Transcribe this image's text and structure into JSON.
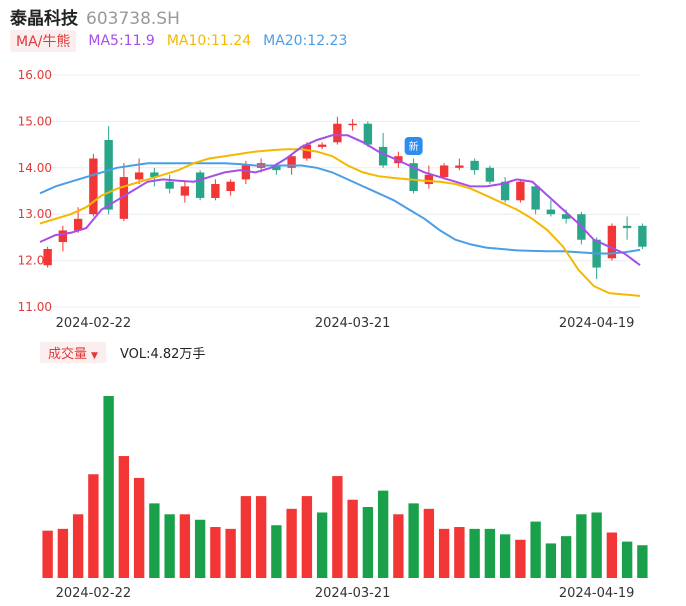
{
  "header": {
    "name": "泰晶科技",
    "code": "603738.SH"
  },
  "ma_legend": {
    "badge": "MA/牛熊",
    "items": [
      {
        "label": "MA5:11.9",
        "color": "#a64ee8"
      },
      {
        "label": "MA10:11.24",
        "color": "#f5b800"
      },
      {
        "label": "MA20:12.23",
        "color": "#4a9ee8"
      }
    ]
  },
  "volume_legend": {
    "badge": "成交量",
    "caret": "▼",
    "text": "VOL:4.82万手"
  },
  "colors": {
    "up": "#f23535",
    "down": "#1aa04b",
    "down_candle": "#2aa58a",
    "ma5": "#a64ee8",
    "ma10": "#f5b800",
    "ma20": "#4a9ee8"
  },
  "marker_icon": "bell-badge-icon",
  "marker_text": "新",
  "chart_data": [
    {
      "type": "candlestick",
      "ylim": [
        11.0,
        16.0
      ],
      "yticks": [
        "16.00",
        "15.00",
        "14.00",
        "13.00",
        "12.00",
        "11.00"
      ],
      "xticks": [
        "2024-02-22",
        "2024-03-21",
        "2024-04-19"
      ],
      "grid": true,
      "candles": [
        {
          "o": 11.9,
          "c": 12.25,
          "h": 12.3,
          "l": 11.85
        },
        {
          "o": 12.4,
          "c": 12.65,
          "h": 12.75,
          "l": 12.2
        },
        {
          "o": 12.65,
          "c": 12.9,
          "h": 13.15,
          "l": 12.6
        },
        {
          "o": 13.0,
          "c": 14.2,
          "h": 14.3,
          "l": 12.95
        },
        {
          "o": 14.6,
          "c": 13.1,
          "h": 14.9,
          "l": 13.0
        },
        {
          "o": 12.9,
          "c": 13.8,
          "h": 14.1,
          "l": 12.85
        },
        {
          "o": 13.75,
          "c": 13.9,
          "h": 14.2,
          "l": 13.65
        },
        {
          "o": 13.9,
          "c": 13.8,
          "h": 14.0,
          "l": 13.6
        },
        {
          "o": 13.7,
          "c": 13.55,
          "h": 13.85,
          "l": 13.45
        },
        {
          "o": 13.4,
          "c": 13.6,
          "h": 13.7,
          "l": 13.25
        },
        {
          "o": 13.9,
          "c": 13.35,
          "h": 13.95,
          "l": 13.3
        },
        {
          "o": 13.35,
          "c": 13.65,
          "h": 13.75,
          "l": 13.3
        },
        {
          "o": 13.5,
          "c": 13.7,
          "h": 13.75,
          "l": 13.4
        },
        {
          "o": 13.75,
          "c": 14.05,
          "h": 14.15,
          "l": 13.65
        },
        {
          "o": 14.0,
          "c": 14.1,
          "h": 14.2,
          "l": 13.9
        },
        {
          "o": 14.05,
          "c": 13.95,
          "h": 14.1,
          "l": 13.85
        },
        {
          "o": 14.0,
          "c": 14.25,
          "h": 14.3,
          "l": 13.85
        },
        {
          "o": 14.2,
          "c": 14.5,
          "h": 14.55,
          "l": 14.15
        },
        {
          "o": 14.45,
          "c": 14.5,
          "h": 14.55,
          "l": 14.4
        },
        {
          "o": 14.55,
          "c": 14.95,
          "h": 15.1,
          "l": 14.5
        },
        {
          "o": 14.95,
          "c": 14.95,
          "h": 15.05,
          "l": 14.8
        },
        {
          "o": 14.95,
          "c": 14.5,
          "h": 15.0,
          "l": 14.45
        },
        {
          "o": 14.45,
          "c": 14.05,
          "h": 14.75,
          "l": 14.0
        },
        {
          "o": 14.1,
          "c": 14.25,
          "h": 14.35,
          "l": 14.0
        },
        {
          "o": 14.1,
          "c": 13.5,
          "h": 14.2,
          "l": 13.45
        },
        {
          "o": 13.65,
          "c": 13.85,
          "h": 14.05,
          "l": 13.55
        },
        {
          "o": 13.8,
          "c": 14.05,
          "h": 14.1,
          "l": 13.75
        },
        {
          "o": 14.0,
          "c": 14.05,
          "h": 14.2,
          "l": 13.95
        },
        {
          "o": 14.15,
          "c": 13.95,
          "h": 14.2,
          "l": 13.85
        },
        {
          "o": 14.0,
          "c": 13.7,
          "h": 14.05,
          "l": 13.65
        },
        {
          "o": 13.7,
          "c": 13.3,
          "h": 13.8,
          "l": 13.25
        },
        {
          "o": 13.3,
          "c": 13.7,
          "h": 13.75,
          "l": 13.25
        },
        {
          "o": 13.6,
          "c": 13.1,
          "h": 13.65,
          "l": 13.0
        },
        {
          "o": 13.1,
          "c": 13.0,
          "h": 13.3,
          "l": 12.95
        },
        {
          "o": 13.0,
          "c": 12.9,
          "h": 13.1,
          "l": 12.8
        },
        {
          "o": 13.0,
          "c": 12.45,
          "h": 13.05,
          "l": 12.35
        },
        {
          "o": 12.45,
          "c": 11.85,
          "h": 12.5,
          "l": 11.6
        },
        {
          "o": 12.05,
          "c": 12.75,
          "h": 12.8,
          "l": 12.0
        },
        {
          "o": 12.75,
          "c": 12.7,
          "h": 12.95,
          "l": 12.45
        },
        {
          "o": 12.75,
          "c": 12.3,
          "h": 12.8,
          "l": 12.25
        }
      ],
      "ma5": [
        12.4,
        12.55,
        12.6,
        12.7,
        13.1,
        13.3,
        13.5,
        13.7,
        13.75,
        13.72,
        13.7,
        13.8,
        13.9,
        13.95,
        13.9,
        14.0,
        14.2,
        14.45,
        14.6,
        14.7,
        14.7,
        14.55,
        14.35,
        14.2,
        14.05,
        13.9,
        13.8,
        13.7,
        13.6,
        13.6,
        13.65,
        13.75,
        13.7,
        13.4,
        13.1,
        12.8,
        12.45,
        12.3,
        12.15,
        11.9
      ],
      "ma10": [
        12.8,
        12.9,
        13.0,
        13.15,
        13.4,
        13.55,
        13.65,
        13.75,
        13.85,
        13.95,
        14.1,
        14.2,
        14.25,
        14.3,
        14.35,
        14.38,
        14.4,
        14.4,
        14.35,
        14.25,
        14.05,
        13.9,
        13.82,
        13.78,
        13.75,
        13.72,
        13.7,
        13.65,
        13.55,
        13.4,
        13.25,
        13.1,
        12.9,
        12.65,
        12.3,
        11.8,
        11.45,
        11.3,
        11.27,
        11.24
      ],
      "ma20": [
        13.45,
        13.6,
        13.7,
        13.8,
        13.9,
        14.0,
        14.05,
        14.1,
        14.1,
        14.1,
        14.1,
        14.1,
        14.1,
        14.08,
        14.05,
        14.05,
        14.05,
        14.05,
        14.0,
        13.9,
        13.75,
        13.6,
        13.45,
        13.3,
        13.1,
        12.9,
        12.65,
        12.45,
        12.35,
        12.28,
        12.25,
        12.22,
        12.21,
        12.2,
        12.2,
        12.18,
        12.16,
        12.15,
        12.18,
        12.23
      ],
      "marker_index": 24
    },
    {
      "type": "bar",
      "title": "成交量",
      "xticks": [
        "2024-02-22",
        "2024-03-21",
        "2024-04-19"
      ],
      "ylim": [
        0,
        100
      ],
      "values": [
        26,
        27,
        35,
        57,
        100,
        67,
        55,
        41,
        35,
        35,
        32,
        28,
        27,
        45,
        45,
        29,
        38,
        45,
        36,
        56,
        43,
        39,
        48,
        35,
        41,
        38,
        27,
        28,
        27,
        27,
        24,
        21,
        31,
        19,
        23,
        35,
        36,
        25,
        20,
        18
      ],
      "up": [
        true,
        true,
        true,
        true,
        false,
        true,
        true,
        false,
        false,
        true,
        false,
        true,
        true,
        true,
        true,
        false,
        true,
        true,
        false,
        true,
        true,
        false,
        false,
        true,
        false,
        true,
        true,
        true,
        false,
        false,
        false,
        true,
        false,
        false,
        false,
        false,
        false,
        true,
        false,
        false
      ]
    }
  ]
}
